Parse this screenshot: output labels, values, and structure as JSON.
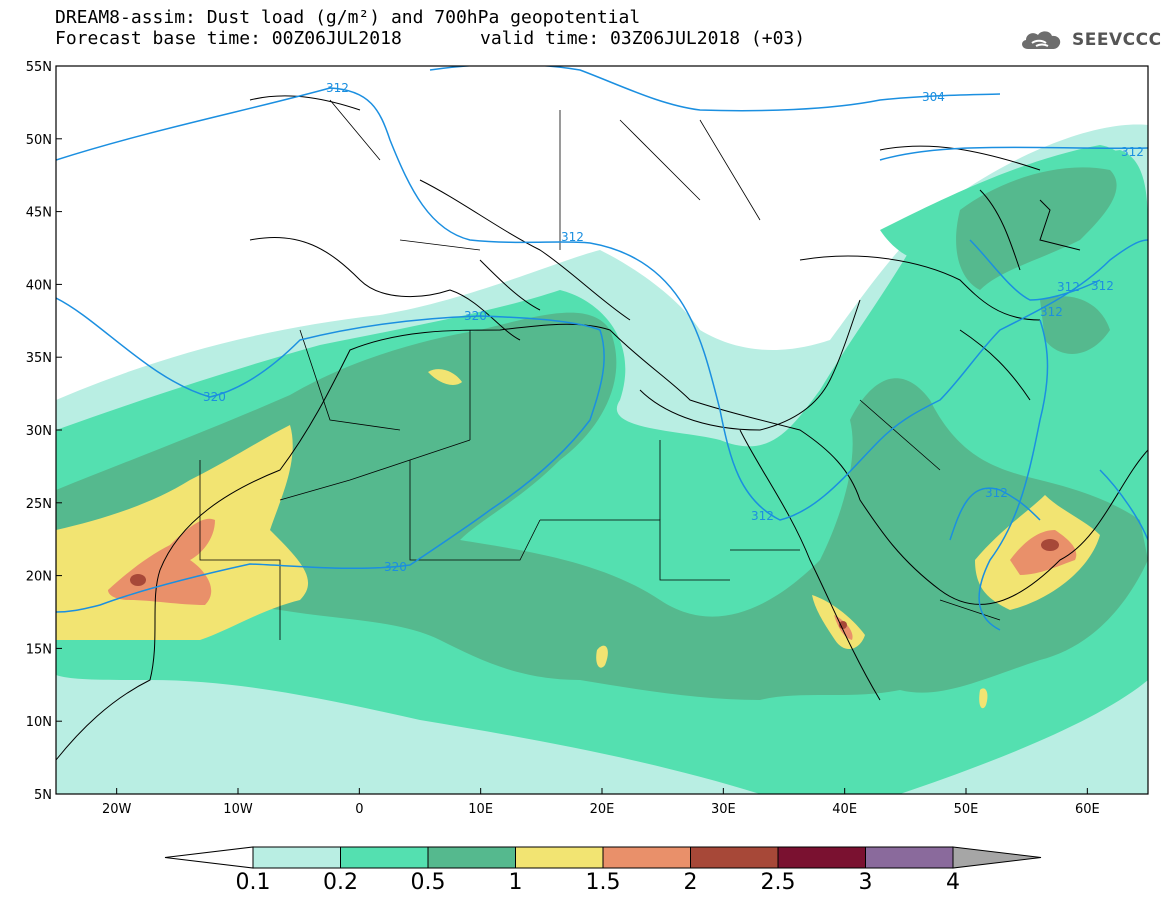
{
  "header": {
    "title_line1": "DREAM8-assim: Dust load (g/m²) and 700hPa geopotential",
    "title_line2_left": "Forecast base time: 00Z06JUL2018",
    "title_line2_right": "valid time: 03Z06JUL2018 (+03)",
    "logo_text": "SEEVCCC",
    "logo_icon": "cloud-icon"
  },
  "map": {
    "lon_range": [
      -25,
      65
    ],
    "lat_range": [
      5,
      55
    ],
    "lat_ticks": [
      "55N",
      "50N",
      "45N",
      "40N",
      "35N",
      "30N",
      "25N",
      "20N",
      "15N",
      "10N",
      "5N"
    ],
    "lon_ticks": [
      "20W",
      "10W",
      "0",
      "10E",
      "20E",
      "30E",
      "40E",
      "50E",
      "60E"
    ],
    "contour_labels": [
      "312",
      "304",
      "312",
      "312",
      "312",
      "320",
      "320",
      "312",
      "312",
      "312",
      "320",
      "312"
    ],
    "contour_color": "#1b8fe0"
  },
  "colorbar": {
    "labels": [
      "0.1",
      "0.2",
      "0.5",
      "1",
      "1.5",
      "2",
      "2.5",
      "3",
      "4"
    ],
    "colors": [
      "#ffffff",
      "#b9eee3",
      "#54e0b0",
      "#55b98e",
      "#f2e472",
      "#e9906a",
      "#a74838",
      "#7a1130",
      "#8a6a9c",
      "#a6a6a6"
    ]
  }
}
